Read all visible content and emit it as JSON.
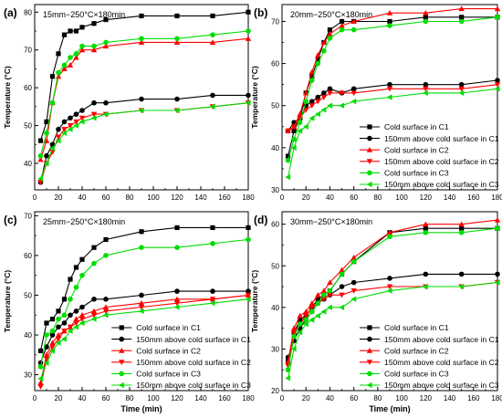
{
  "colors": {
    "cold_C1": "#000000",
    "above_C1": "#000000",
    "cold_C2": "#ff0000",
    "above_C2": "#ff0000",
    "cold_C3": "#00dd00",
    "above_C3": "#00dd00"
  },
  "chart_data": [
    {
      "type": "line",
      "panel_label": "(a)",
      "title": "15mm−250°C×180min",
      "xlabel": "",
      "ylabel": "Temperature (°C)",
      "xlim": [
        0,
        180
      ],
      "ylim": [
        33,
        82
      ],
      "xticks": [
        0,
        20,
        40,
        60,
        80,
        100,
        120,
        140,
        160,
        180
      ],
      "yticks": [
        40,
        50,
        60,
        70,
        80
      ],
      "grid": false,
      "legend": null,
      "x": [
        5,
        10,
        15,
        20,
        25,
        30,
        35,
        40,
        50,
        60,
        90,
        120,
        150,
        180
      ],
      "series": [
        {
          "name": "Cold surface in C1",
          "color_key": "cold_C1",
          "marker": "square",
          "values": [
            46,
            51,
            63,
            69,
            74,
            75,
            75,
            76,
            77,
            78,
            79,
            79,
            79,
            80
          ]
        },
        {
          "name": "150mm above cold surface in C1",
          "color_key": "above_C1",
          "marker": "circle",
          "values": [
            35,
            42,
            45,
            49,
            51,
            52,
            53,
            54,
            56,
            56,
            57,
            57,
            58,
            58
          ]
        },
        {
          "name": "Cold surface in C2",
          "color_key": "cold_C2",
          "marker": "triangle-up",
          "values": [
            41,
            46,
            56,
            63,
            65,
            66,
            68,
            70,
            70,
            71,
            72,
            72,
            72,
            73
          ]
        },
        {
          "name": "150mm above cold surface in C2",
          "color_key": "above_C2",
          "marker": "triangle-down",
          "values": [
            35,
            40,
            43,
            47,
            49,
            50,
            51,
            52,
            53,
            53,
            54,
            54,
            55,
            56
          ]
        },
        {
          "name": "Cold surface in C3",
          "color_key": "cold_C3",
          "marker": "circle",
          "values": [
            42,
            48,
            56,
            64,
            66,
            68,
            69,
            71,
            71,
            72,
            73,
            73,
            74,
            75
          ]
        },
        {
          "name": "150mm above cold surface in C3",
          "color_key": "above_C3",
          "marker": "triangle-left",
          "values": [
            36,
            40,
            44,
            46,
            48,
            49,
            50,
            51,
            52,
            53,
            54,
            54,
            55,
            56
          ]
        }
      ]
    },
    {
      "type": "line",
      "panel_label": "(b)",
      "title": "20mm−250°C×180min",
      "xlabel": "",
      "ylabel": "Temperature (°C)",
      "xlim": [
        0,
        180
      ],
      "ylim": [
        30,
        74
      ],
      "xticks": [
        0,
        20,
        40,
        60,
        80,
        100,
        120,
        140,
        160,
        180
      ],
      "yticks": [
        30,
        40,
        50,
        60,
        70
      ],
      "grid": false,
      "legend": "bottom-right",
      "x": [
        5,
        10,
        15,
        20,
        25,
        30,
        35,
        40,
        50,
        60,
        90,
        120,
        150,
        180
      ],
      "series": [
        {
          "name": "Cold surface in C1",
          "color_key": "cold_C1",
          "marker": "square",
          "values": [
            38,
            44,
            47,
            53,
            57,
            61,
            65,
            68,
            70,
            70,
            70,
            71,
            71,
            71
          ]
        },
        {
          "name": "150mm above cold surface in C1",
          "color_key": "above_C1",
          "marker": "circle",
          "values": [
            44,
            46,
            47,
            50,
            51,
            52,
            53,
            54,
            53,
            54,
            55,
            55,
            55,
            56
          ]
        },
        {
          "name": "Cold surface in C2",
          "color_key": "cold_C2",
          "marker": "triangle-up",
          "values": [
            44,
            45,
            48,
            53,
            58,
            62,
            65,
            67,
            69,
            70,
            72,
            72,
            73,
            73
          ]
        },
        {
          "name": "150mm above cold surface in C2",
          "color_key": "above_C2",
          "marker": "triangle-down",
          "values": [
            44,
            45,
            47,
            49,
            50,
            51,
            52,
            53,
            53,
            53,
            54,
            54,
            54,
            55
          ]
        },
        {
          "name": "Cold surface in C3",
          "color_key": "cold_C3",
          "marker": "circle",
          "values": [
            37,
            42,
            46,
            51,
            56,
            60,
            63,
            66,
            68,
            68,
            69,
            70,
            70,
            71
          ]
        },
        {
          "name": "150mm above cold surface in C3",
          "color_key": "above_C3",
          "marker": "triangle-left",
          "values": [
            33,
            40,
            44,
            45,
            47,
            48,
            49,
            50,
            50,
            51,
            52,
            53,
            53,
            54
          ]
        }
      ]
    },
    {
      "type": "line",
      "panel_label": "(c)",
      "title": "25mm−250°C×180min",
      "xlabel": "Time (min)",
      "ylabel": "Temperature (°C)",
      "xlim": [
        0,
        180
      ],
      "ylim": [
        26,
        71
      ],
      "xticks": [
        0,
        20,
        40,
        60,
        80,
        100,
        120,
        140,
        160,
        180
      ],
      "yticks": [
        30,
        40,
        50,
        60,
        70
      ],
      "grid": false,
      "legend": "bottom-right",
      "x": [
        5,
        10,
        15,
        20,
        25,
        30,
        35,
        40,
        50,
        60,
        90,
        120,
        150,
        180
      ],
      "series": [
        {
          "name": "Cold surface in C1",
          "color_key": "cold_C1",
          "marker": "square",
          "values": [
            36,
            43,
            44,
            46,
            49,
            54,
            57,
            59,
            62,
            64,
            66,
            67,
            67,
            67
          ]
        },
        {
          "name": "150mm above cold surface in C1",
          "color_key": "above_C1",
          "marker": "circle",
          "values": [
            33,
            37,
            40,
            42,
            43,
            45,
            46,
            47,
            49,
            49,
            50,
            51,
            51,
            51
          ]
        },
        {
          "name": "Cold surface in C2",
          "color_key": "cold_C2",
          "marker": "triangle-up",
          "values": [
            28,
            35,
            38,
            40,
            41,
            42,
            44,
            45,
            46,
            47,
            48,
            49,
            49,
            50
          ]
        },
        {
          "name": "150mm above cold surface in C2",
          "color_key": "above_C2",
          "marker": "triangle-down",
          "values": [
            27,
            34,
            37,
            39,
            41,
            42,
            43,
            44,
            45,
            46,
            47,
            48,
            49,
            50
          ]
        },
        {
          "name": "Cold surface in C3",
          "color_key": "cold_C3",
          "marker": "circle",
          "values": [
            32,
            40,
            41,
            44,
            45,
            49,
            52,
            55,
            58,
            60,
            62,
            62,
            63,
            64
          ]
        },
        {
          "name": "150mm above cold surface in C3",
          "color_key": "above_C3",
          "marker": "triangle-left",
          "values": [
            29,
            33,
            36,
            38,
            39,
            41,
            42,
            43,
            44,
            45,
            46,
            47,
            48,
            49
          ]
        }
      ]
    },
    {
      "type": "line",
      "panel_label": "(d)",
      "title": "30mm−250°C×180min",
      "xlabel": "Time (min)",
      "ylabel": "Temperature (°C)",
      "xlim": [
        0,
        180
      ],
      "ylim": [
        20,
        63
      ],
      "xticks": [
        0,
        20,
        40,
        60,
        80,
        100,
        120,
        140,
        160,
        180
      ],
      "yticks": [
        20,
        30,
        40,
        50,
        60
      ],
      "grid": false,
      "legend": "bottom-right",
      "x": [
        5,
        10,
        15,
        20,
        25,
        30,
        35,
        40,
        50,
        60,
        90,
        120,
        150,
        180
      ],
      "series": [
        {
          "name": "Cold surface in C1",
          "color_key": "cold_C1",
          "marker": "square",
          "values": [
            27,
            34,
            37,
            38,
            40,
            42,
            43,
            44,
            48,
            51,
            58,
            59,
            59,
            59
          ]
        },
        {
          "name": "150mm above cold surface in C1",
          "color_key": "above_C1",
          "marker": "circle",
          "values": [
            28,
            32,
            35,
            37,
            39,
            41,
            42,
            43,
            45,
            46,
            47,
            48,
            48,
            48
          ]
        },
        {
          "name": "Cold surface in C2",
          "color_key": "cold_C2",
          "marker": "triangle-up",
          "values": [
            27,
            35,
            38,
            39,
            41,
            43,
            44,
            46,
            49,
            52,
            58,
            60,
            60,
            61
          ]
        },
        {
          "name": "150mm above cold surface in C2",
          "color_key": "above_C2",
          "marker": "triangle-down",
          "values": [
            26,
            34,
            36,
            38,
            40,
            41,
            42,
            43,
            43,
            44,
            45,
            45,
            45,
            46
          ]
        },
        {
          "name": "Cold surface in C3",
          "color_key": "cold_C3",
          "marker": "circle",
          "values": [
            25,
            33,
            36,
            37,
            39,
            41,
            43,
            44,
            48,
            51,
            57,
            58,
            58,
            59
          ]
        },
        {
          "name": "150mm above cold surface in C3",
          "color_key": "above_C3",
          "marker": "triangle-left",
          "values": [
            23,
            30,
            34,
            36,
            37,
            38,
            39,
            40,
            40,
            42,
            44,
            45,
            45,
            46
          ]
        }
      ]
    }
  ]
}
